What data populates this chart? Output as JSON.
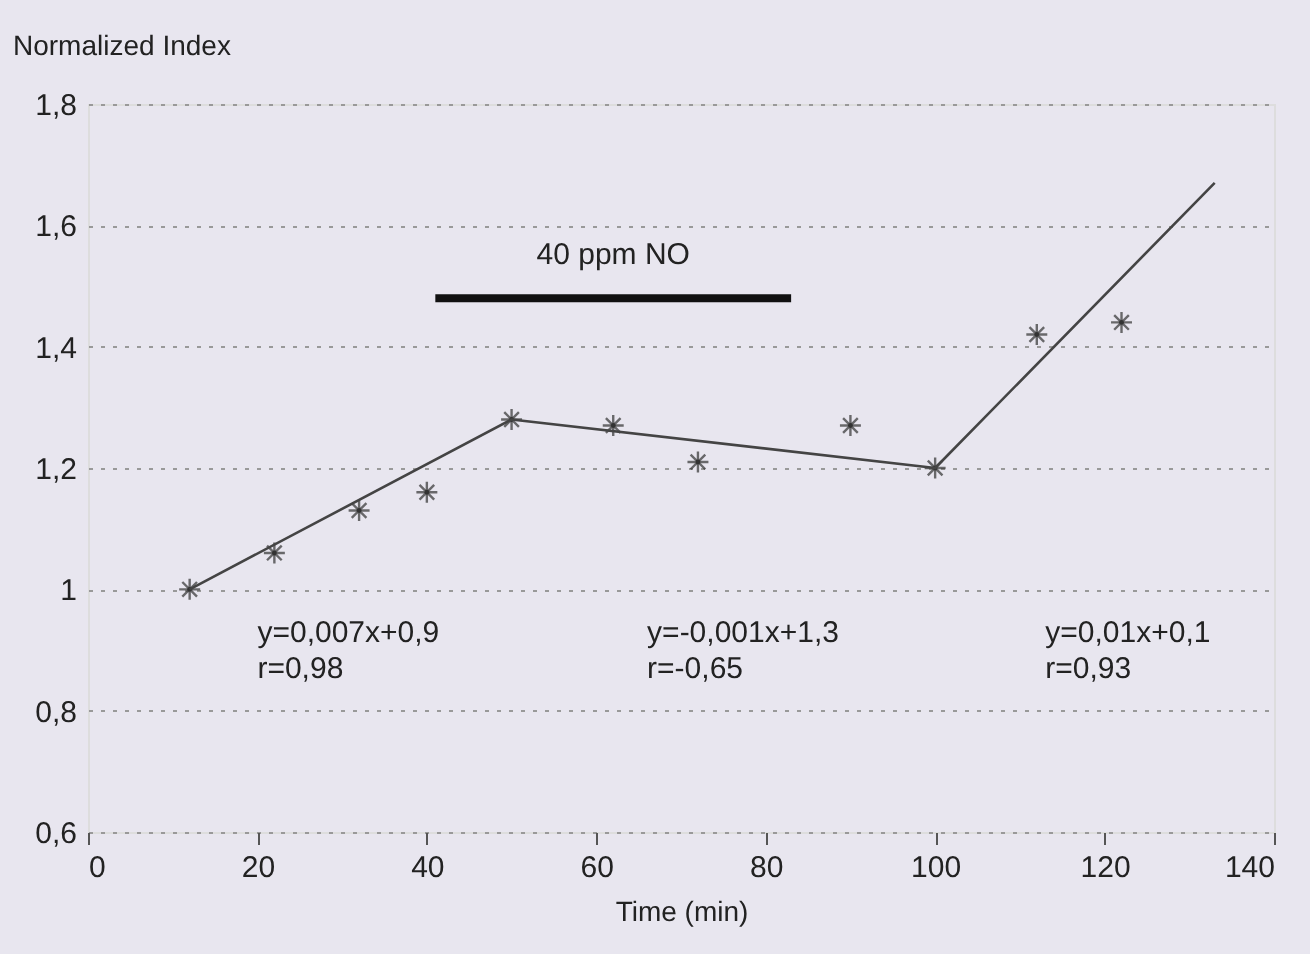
{
  "chart_data": {
    "type": "scatter",
    "ylabel": "Normalized Index",
    "xlabel": "Time (min)",
    "xlim": [
      0,
      140
    ],
    "xticks": [
      0,
      20,
      40,
      60,
      80,
      100,
      120,
      140
    ],
    "ylim": [
      0.6,
      1.8
    ],
    "yticks": [
      {
        "value": 0.6,
        "label": "0,6"
      },
      {
        "value": 0.8,
        "label": "0,8"
      },
      1,
      {
        "value": 1.2,
        "label": "1,2"
      },
      {
        "value": 1.4,
        "label": "1,4"
      },
      {
        "value": 1.6,
        "label": "1,6"
      },
      {
        "value": 1.8,
        "label": "1,8"
      }
    ],
    "grid": "y",
    "series": [
      {
        "marker": "cross",
        "color": "#333333",
        "x": [
          12,
          22,
          32,
          40,
          50,
          62,
          72,
          90,
          100,
          112,
          122
        ],
        "values": [
          1.0,
          1.06,
          1.13,
          1.16,
          1.28,
          1.27,
          1.21,
          1.27,
          1.2,
          1.42,
          1.44
        ]
      },
      {
        "type": "line",
        "color": "#444444",
        "x": [
          12,
          50,
          100,
          133
        ],
        "values": [
          1.0,
          1.28,
          1.2,
          1.67
        ]
      },
      {
        "type": "line",
        "name": "40 ppm NO",
        "color": "#111111",
        "x": [
          41,
          83
        ],
        "values": [
          1.48,
          1.48
        ]
      }
    ],
    "annotations": [
      "y=0,007x+0,9",
      "r=0,98",
      "y=-0,001x+1,3",
      "r=-0,65",
      "y=0,01x+0,1",
      "r=0,93"
    ]
  }
}
